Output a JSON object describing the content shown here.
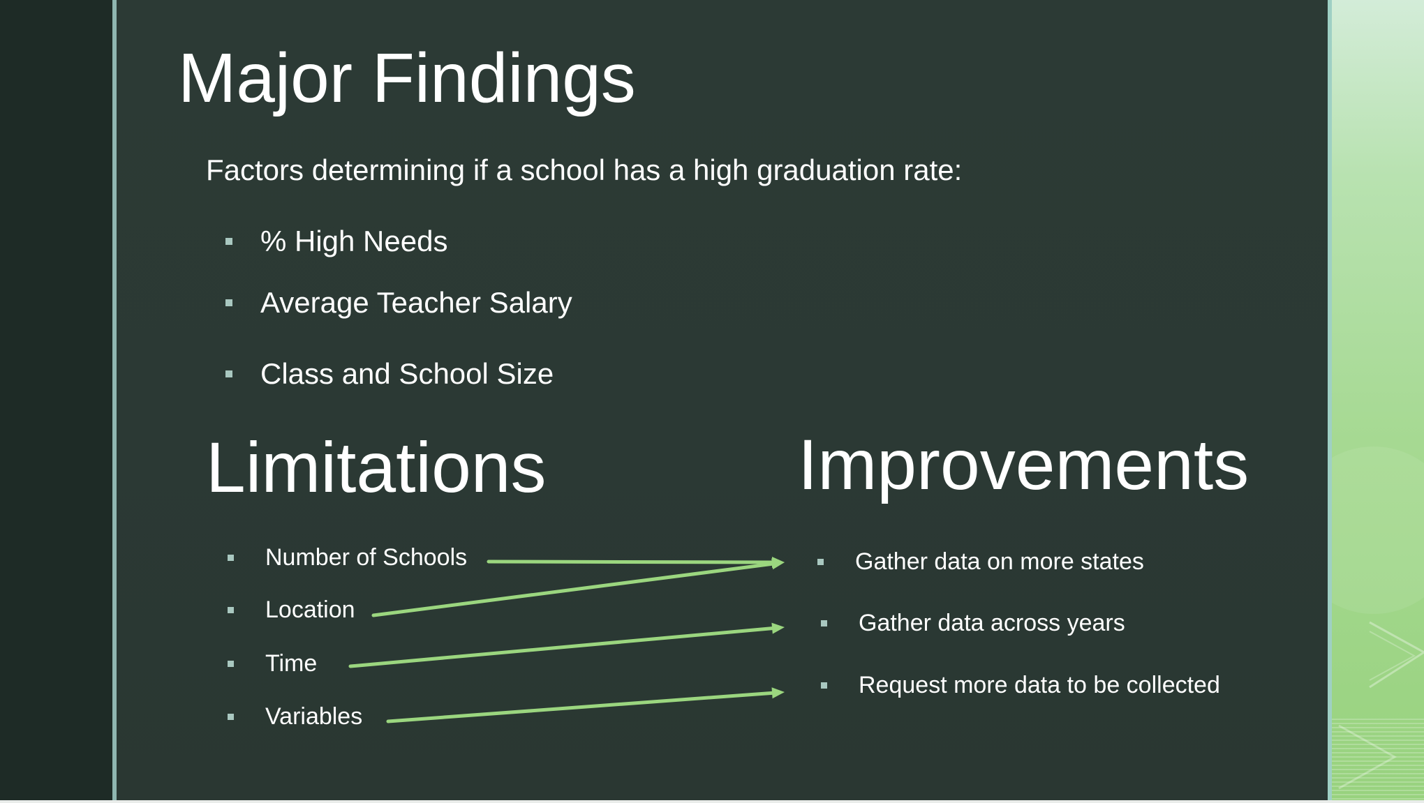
{
  "slide": {
    "title": "Major Findings",
    "subtitle": "Factors determining if a school has a high graduation rate:",
    "findings": [
      "% High Needs",
      "Average Teacher Salary",
      "Class and School Size"
    ],
    "limitations": {
      "heading": "Limitations",
      "items": [
        "Number of Schools",
        "Location",
        "Time",
        "Variables"
      ]
    },
    "improvements": {
      "heading": "Improvements",
      "items": [
        "Gather data on more states",
        "Gather data across years",
        "Request more data to be collected"
      ]
    },
    "colors": {
      "background": "#2c3a35",
      "left_band": "#1e2b26",
      "accent_rule": "#8fb6b0",
      "bullet": "#a9c8c0",
      "arrow": "#9bd67f",
      "text": "#ffffff"
    },
    "connections": [
      {
        "from": "Number of Schools",
        "to": "Gather data on more states"
      },
      {
        "from": "Location",
        "to": "Gather data on more states"
      },
      {
        "from": "Time",
        "to": "Gather data across years"
      },
      {
        "from": "Variables",
        "to": "Request more data to be collected"
      }
    ]
  }
}
